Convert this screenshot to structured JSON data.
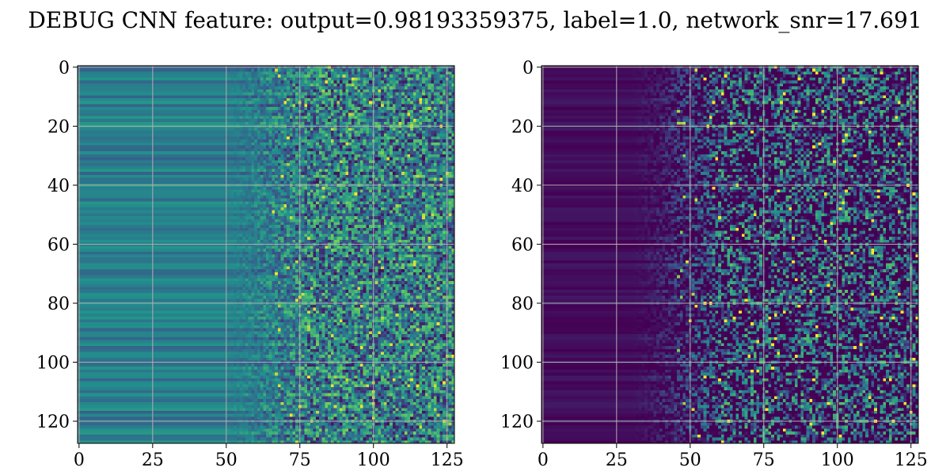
{
  "figure": {
    "title": "DEBUG CNN feature: output=0.98193359375, label=1.0, network_snr=17.691"
  },
  "chart_data": [
    {
      "type": "heatmap",
      "name": "",
      "colormap": "viridis",
      "colormap_stops": [
        "#440154",
        "#3b528b",
        "#21918c",
        "#5ec962",
        "#fde725"
      ],
      "shape": [
        128,
        128
      ],
      "xlim": [
        -0.5,
        127.5
      ],
      "ylim": [
        127.5,
        -0.5
      ],
      "x_ticks": [
        0,
        25,
        50,
        75,
        100,
        125
      ],
      "y_ticks": [
        0,
        20,
        40,
        60,
        80,
        100,
        120
      ],
      "grid": true,
      "grid_color": "#b0b0b0",
      "value_model": {
        "low_freq_level": 0.42,
        "noise_onset_col": 75,
        "noise_amplitude": 0.35
      }
    },
    {
      "type": "heatmap",
      "name": "",
      "colormap": "viridis",
      "colormap_stops": [
        "#440154",
        "#3b528b",
        "#21918c",
        "#5ec962",
        "#fde725"
      ],
      "shape": [
        128,
        128
      ],
      "xlim": [
        -0.5,
        127.5
      ],
      "ylim": [
        127.5,
        -0.5
      ],
      "x_ticks": [
        0,
        25,
        50,
        75,
        100,
        125
      ],
      "y_ticks": [
        0,
        20,
        40,
        60,
        80,
        100,
        120
      ],
      "grid": true,
      "grid_color": "#b0b0b0",
      "value_model": {
        "low_freq_level": 0.08,
        "noise_onset_col": 55,
        "noise_amplitude": 0.45
      }
    }
  ]
}
